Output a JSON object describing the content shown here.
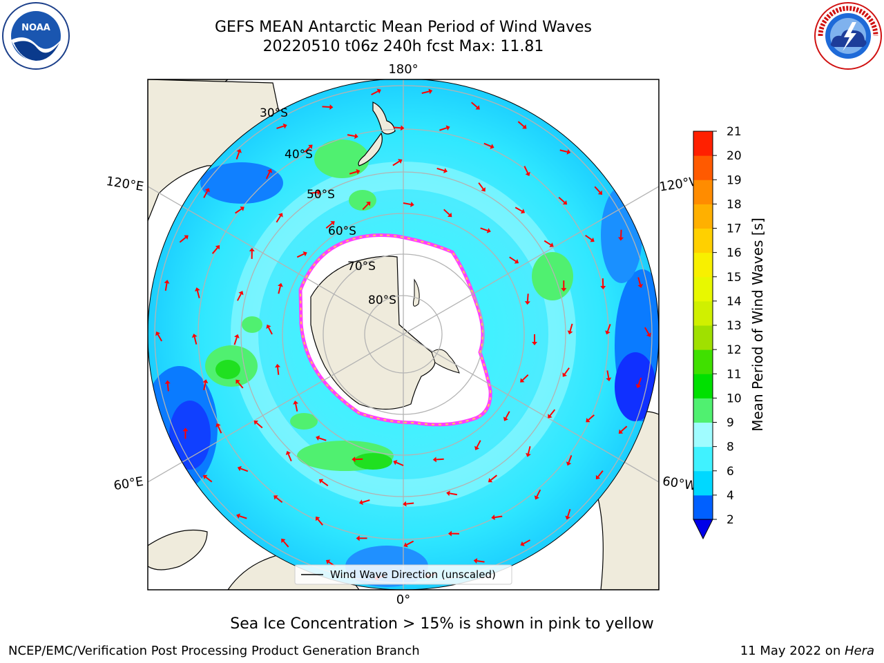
{
  "title": {
    "line1": "GEFS MEAN Antarctic Mean Period of Wind Waves",
    "line2": "20220510 t06z 240h fcst   Max: 11.81"
  },
  "logos": {
    "left": {
      "text": "NOAA",
      "ring_text": "NATIONAL OCEANIC AND ATMOSPHERIC ADMINISTRATION",
      "bottom_text": "U.S. DEPARTMENT OF COMMERCE"
    },
    "right": {
      "ring_text": "NATIONAL WEATHER SERVICE"
    }
  },
  "map": {
    "longitude_labels": {
      "top": "180°",
      "bottom": "0°",
      "upper_left": "120°E",
      "lower_left": "60°E",
      "upper_right": "120°W",
      "lower_right": "60°W"
    },
    "latitude_labels": [
      "30°S",
      "40°S",
      "50°S",
      "60°S",
      "70°S",
      "80°S"
    ],
    "legend": "Wind Wave Direction (unscaled)",
    "colors": {
      "land": "#efebdc",
      "ice": "#ffffff",
      "ice_edge": [
        "#ff40ff",
        "#ffd24a"
      ],
      "arrow": "#ff0000",
      "grid": "#b3b3b3"
    }
  },
  "colorbar": {
    "label": "Mean Period of Wind Waves [s]",
    "ticks": [
      "2",
      "4",
      "6",
      "8",
      "9",
      "10",
      "11",
      "12",
      "13",
      "14",
      "15",
      "16",
      "17",
      "18",
      "19",
      "20",
      "21"
    ],
    "colors": [
      "#0060ff",
      "#00d8ff",
      "#40f2ff",
      "#a0fcff",
      "#50f070",
      "#00e000",
      "#40e000",
      "#a0e000",
      "#d0f000",
      "#e8f800",
      "#f8f000",
      "#ffd000",
      "#ffb000",
      "#ff8c00",
      "#ff5a00",
      "#ff2000"
    ],
    "extend_color": "#0000e8"
  },
  "subtitle": "Sea Ice Concentration > 15% is shown in pink to yellow",
  "footer": {
    "left": "NCEP/EMC/Verification Post Processing Product Generation Branch",
    "right_date": "11 May 2022 on ",
    "right_host": "Hera"
  }
}
